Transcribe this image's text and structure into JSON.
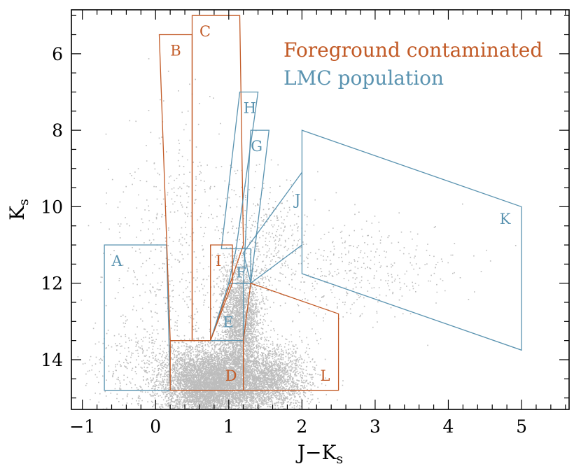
{
  "colors": {
    "foreground": "#c25a26",
    "lmc": "#5a93b0",
    "points": "#bdbdbd",
    "axis": "#000000"
  },
  "legend": {
    "foreground_label": "Foreground contaminated",
    "lmc_label": "LMC population"
  },
  "chart_data": {
    "type": "scatter",
    "title": "",
    "xlabel_main": "J−K",
    "xlabel_sub": "s",
    "ylabel_main": "K",
    "ylabel_sub": "s",
    "xlim": [
      -1.15,
      5.65
    ],
    "ylim": [
      15.3,
      4.85
    ],
    "y_inverted": true,
    "x_major_ticks": [
      -1,
      0,
      1,
      2,
      3,
      4,
      5
    ],
    "x_tick_labels": [
      "−1",
      "0",
      "1",
      "2",
      "3",
      "4",
      "5"
    ],
    "x_minor_step": 0.2,
    "y_major_ticks": [
      6,
      8,
      10,
      12,
      14
    ],
    "y_tick_labels": [
      "6",
      "8",
      "10",
      "12",
      "14"
    ],
    "y_minor_step": 0.5,
    "legend_position": "top-right",
    "regions": [
      {
        "label": "A",
        "group": "lmc",
        "label_at": [
          -0.6,
          11.4
        ],
        "polygon": [
          [
            -0.7,
            11.0
          ],
          [
            0.15,
            11.0
          ],
          [
            0.2,
            14.8
          ],
          [
            -0.7,
            14.8
          ]
        ]
      },
      {
        "label": "B",
        "group": "foreground",
        "label_at": [
          0.2,
          5.9
        ],
        "polygon": [
          [
            0.05,
            5.5
          ],
          [
            0.5,
            5.5
          ],
          [
            0.5,
            13.5
          ],
          [
            0.2,
            13.5
          ]
        ]
      },
      {
        "label": "C",
        "group": "foreground",
        "label_at": [
          0.6,
          5.4
        ],
        "polygon": [
          [
            0.5,
            5.0
          ],
          [
            1.15,
            5.0
          ],
          [
            1.2,
            11.0
          ],
          [
            0.75,
            13.5
          ],
          [
            0.5,
            13.5
          ]
        ]
      },
      {
        "label": "D",
        "group": "foreground",
        "label_at": [
          0.95,
          14.4
        ],
        "polygon": [
          [
            0.2,
            13.5
          ],
          [
            1.2,
            13.5
          ],
          [
            1.2,
            14.8
          ],
          [
            0.2,
            14.8
          ]
        ]
      },
      {
        "label": "E",
        "group": "lmc",
        "label_at": [
          0.92,
          13.0
        ],
        "polygon": [
          [
            0.75,
            13.5
          ],
          [
            1.2,
            13.5
          ],
          [
            1.2,
            12.0
          ],
          [
            1.0,
            12.0
          ]
        ]
      },
      {
        "label": "F",
        "group": "lmc",
        "label_at": [
          1.1,
          11.7
        ],
        "polygon": [
          [
            1.0,
            12.0
          ],
          [
            1.3,
            12.0
          ],
          [
            1.3,
            11.1
          ],
          [
            1.1,
            11.1
          ]
        ]
      },
      {
        "label": "G",
        "group": "lmc",
        "label_at": [
          1.3,
          8.4
        ],
        "polygon": [
          [
            1.3,
            8.0
          ],
          [
            1.55,
            8.0
          ],
          [
            1.3,
            12.0
          ],
          [
            1.2,
            12.0
          ]
        ]
      },
      {
        "label": "H",
        "group": "lmc",
        "label_at": [
          1.2,
          7.4
        ],
        "polygon": [
          [
            1.15,
            7.0
          ],
          [
            1.4,
            7.0
          ],
          [
            1.1,
            11.1
          ],
          [
            0.9,
            11.1
          ]
        ]
      },
      {
        "label": "I",
        "group": "foreground",
        "label_at": [
          0.82,
          11.4
        ],
        "polygon": [
          [
            0.75,
            11.0
          ],
          [
            1.05,
            11.0
          ],
          [
            1.05,
            12.0
          ],
          [
            0.75,
            13.5
          ]
        ]
      },
      {
        "label": "J",
        "group": "lmc",
        "label_at": [
          1.9,
          9.8
        ],
        "polygon": [
          [
            2.0,
            9.1
          ],
          [
            2.0,
            11.0
          ],
          [
            1.3,
            12.0
          ],
          [
            1.2,
            11.2
          ]
        ]
      },
      {
        "label": "K",
        "group": "lmc",
        "label_at": [
          4.7,
          10.3
        ],
        "polygon": [
          [
            2.0,
            8.0
          ],
          [
            5.0,
            10.0
          ],
          [
            5.0,
            13.75
          ],
          [
            2.0,
            11.75
          ]
        ]
      },
      {
        "label": "L",
        "group": "foreground",
        "label_at": [
          2.25,
          14.4
        ],
        "polygon": [
          [
            1.3,
            12.0
          ],
          [
            2.5,
            12.8
          ],
          [
            2.5,
            14.8
          ],
          [
            1.2,
            14.8
          ],
          [
            1.2,
            13.5
          ]
        ]
      }
    ],
    "scatter_series": {
      "name": "",
      "density_components": [
        {
          "cx": 0.75,
          "cy": 14.6,
          "sx": 0.33,
          "sy": 0.45,
          "n": 6500,
          "sy_min": 13.4
        },
        {
          "cx": 1.15,
          "cy": 13.0,
          "sx": 0.13,
          "sy": 0.8,
          "n": 2600,
          "sy_min": 11.2
        },
        {
          "cx": 1.55,
          "cy": 14.5,
          "sx": 0.28,
          "sy": 0.45,
          "n": 2200,
          "sy_min": 12.8
        },
        {
          "cx": 0.3,
          "cy": 12.0,
          "sx": 0.45,
          "sy": 2.3,
          "n": 700,
          "sy_min": 5.5
        },
        {
          "cx": 1.5,
          "cy": 10.8,
          "sx": 0.25,
          "sy": 0.8,
          "n": 300,
          "sy_min": 8.5
        },
        {
          "cx": 2.6,
          "cy": 11.7,
          "sx": 0.7,
          "sy": 0.7,
          "n": 420,
          "sy_min": 9.5
        },
        {
          "cx": -0.3,
          "cy": 14.2,
          "sx": 0.35,
          "sy": 0.6,
          "n": 250,
          "sy_min": 12.5
        }
      ]
    }
  }
}
